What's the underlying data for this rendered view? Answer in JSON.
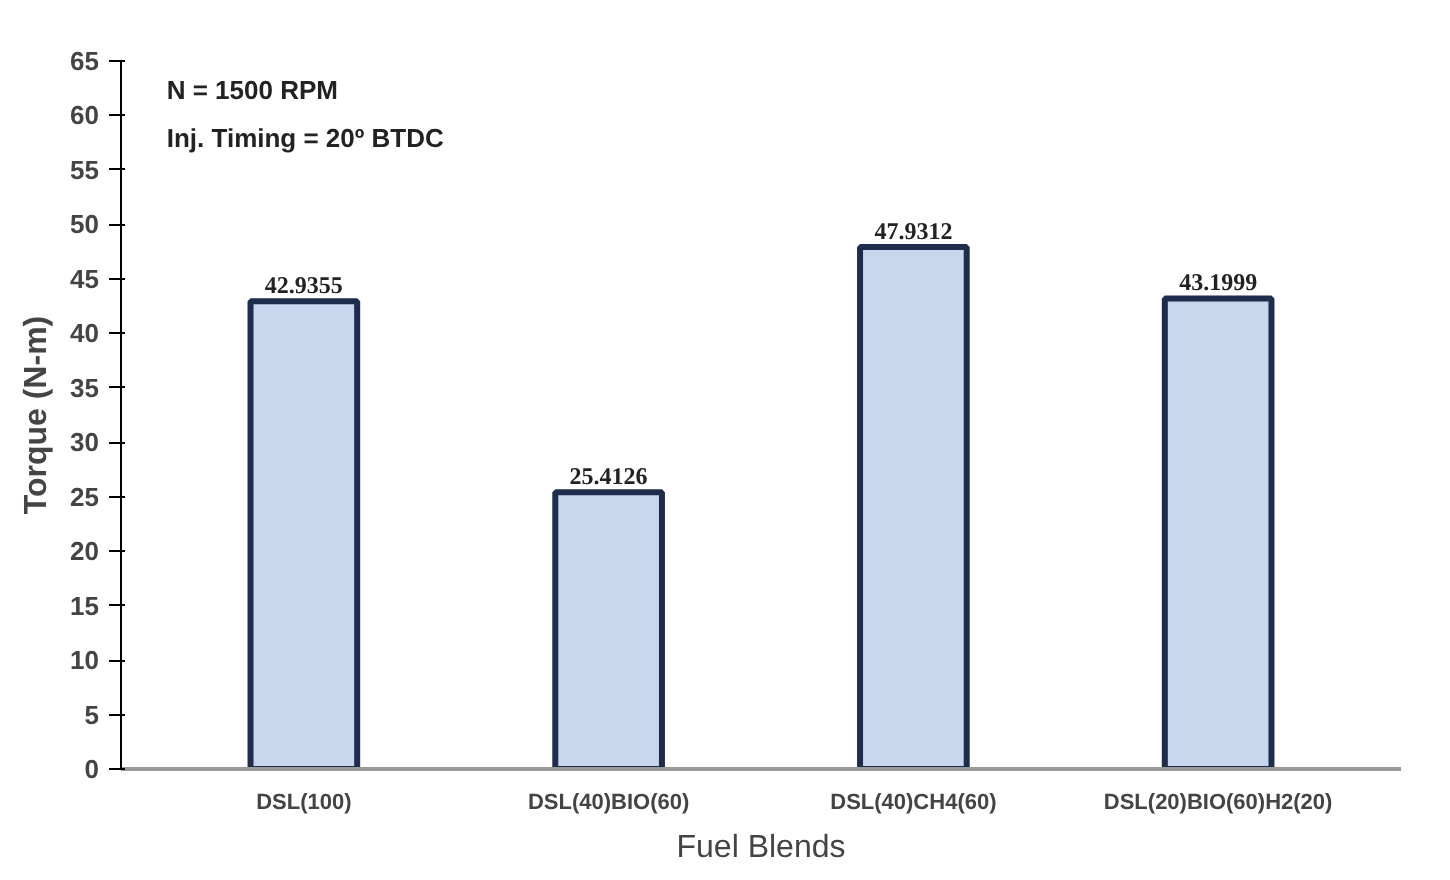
{
  "chart_data": {
    "type": "bar",
    "xlabel": "Fuel Blends",
    "ylabel": "Torque (N-m)",
    "categories": [
      "DSL(100)",
      "DSL(40)BIO(60)",
      "DSL(40)CH4(60)",
      "DSL(20)BIO(60)H2(20)"
    ],
    "values": [
      42.9355,
      25.4126,
      47.9312,
      43.1999
    ],
    "color": "#c8d6ee",
    "ylim": [
      0,
      65
    ],
    "yticks": [
      0,
      5,
      10,
      15,
      20,
      25,
      30,
      35,
      40,
      45,
      50,
      55,
      60,
      65
    ],
    "data_labels": true,
    "grid": false,
    "annotations": [
      "N = 1500 RPM",
      "Inj. Timing = 20º BTDC"
    ]
  }
}
